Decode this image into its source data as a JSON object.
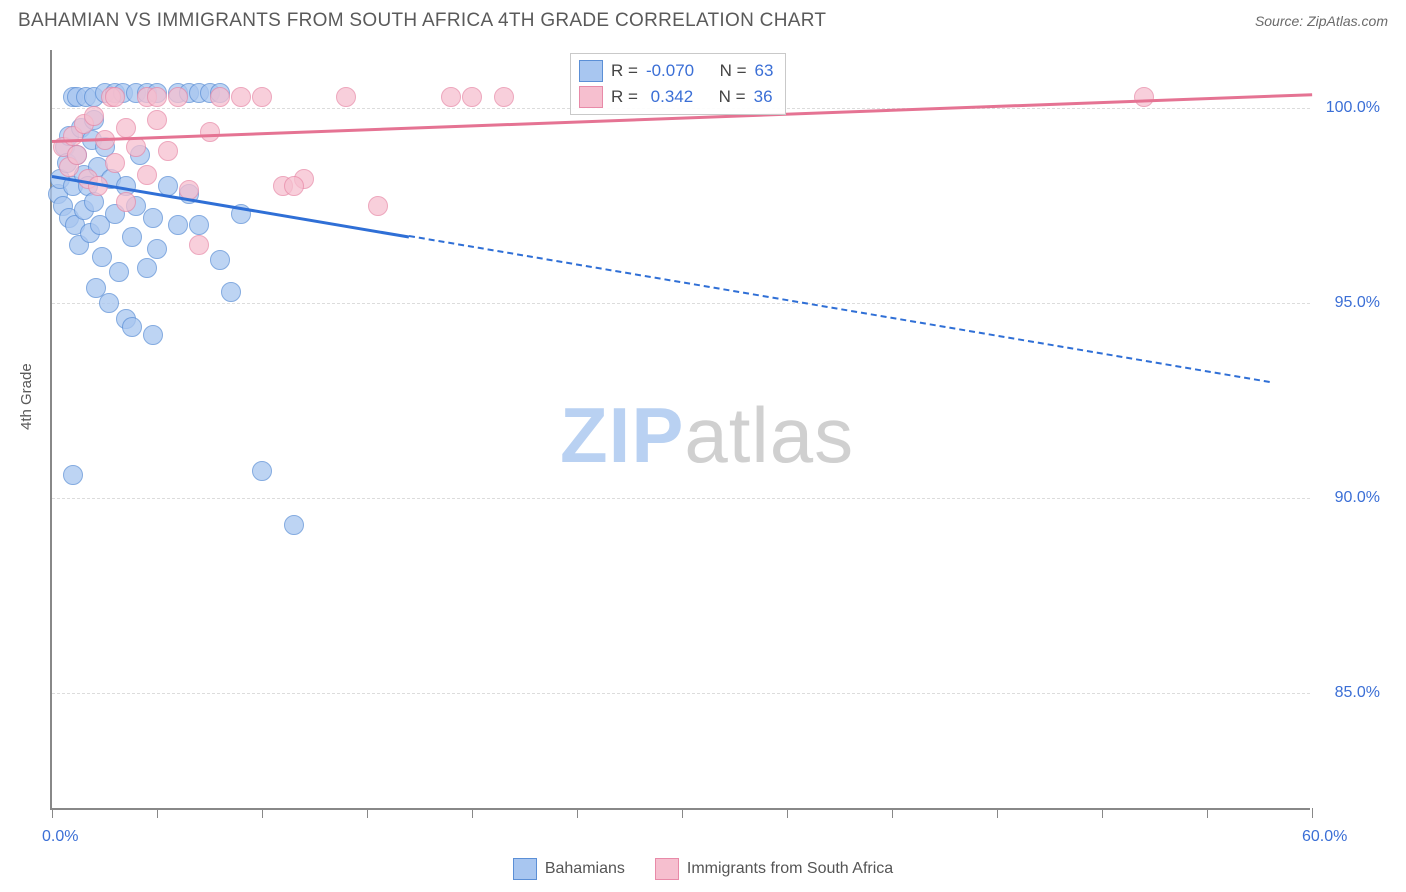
{
  "header": {
    "title": "BAHAMIAN VS IMMIGRANTS FROM SOUTH AFRICA 4TH GRADE CORRELATION CHART",
    "source": "Source: ZipAtlas.com"
  },
  "watermark": {
    "part1": "ZIP",
    "part2": "atlas",
    "color1": "#b9d1f2",
    "color2": "#d0d0d0"
  },
  "axes": {
    "y_title": "4th Grade",
    "xlim": [
      0,
      60
    ],
    "ylim": [
      82,
      101.5
    ],
    "x_ticks": [
      0,
      5,
      10,
      15,
      20,
      25,
      30,
      35,
      40,
      45,
      50,
      55,
      60
    ],
    "x_labels": [
      {
        "v": 0,
        "t": "0.0%"
      },
      {
        "v": 60,
        "t": "60.0%"
      }
    ],
    "y_grid": [
      85,
      90,
      95,
      100
    ],
    "y_labels": [
      {
        "v": 85,
        "t": "85.0%"
      },
      {
        "v": 90,
        "t": "90.0%"
      },
      {
        "v": 95,
        "t": "95.0%"
      },
      {
        "v": 100,
        "t": "100.0%"
      }
    ],
    "grid_color": "#dcdcdc"
  },
  "series": [
    {
      "name": "Bahamians",
      "color_fill": "#a8c6f0",
      "color_stroke": "#5b8fd6",
      "r_label": "-0.070",
      "n_label": "63",
      "marker_radius": 9,
      "trend": {
        "x1": 0,
        "y1": 98.3,
        "x2_solid": 17,
        "x2": 58,
        "y2": 93.0,
        "color": "#2f6fd6",
        "width": 3
      },
      "points": [
        [
          0.3,
          97.8
        ],
        [
          0.4,
          98.2
        ],
        [
          0.5,
          97.5
        ],
        [
          0.6,
          99.0
        ],
        [
          0.7,
          98.6
        ],
        [
          0.8,
          97.2
        ],
        [
          0.8,
          99.3
        ],
        [
          1.0,
          98.0
        ],
        [
          1.0,
          100.3
        ],
        [
          1.1,
          97.0
        ],
        [
          1.2,
          98.8
        ],
        [
          1.2,
          100.3
        ],
        [
          1.3,
          96.5
        ],
        [
          1.4,
          99.5
        ],
        [
          1.5,
          98.3
        ],
        [
          1.5,
          97.4
        ],
        [
          1.6,
          100.3
        ],
        [
          1.7,
          98.0
        ],
        [
          1.8,
          96.8
        ],
        [
          1.9,
          99.2
        ],
        [
          2.0,
          97.6
        ],
        [
          2.0,
          100.3
        ],
        [
          2.1,
          95.4
        ],
        [
          2.2,
          98.5
        ],
        [
          2.3,
          97.0
        ],
        [
          2.4,
          96.2
        ],
        [
          2.5,
          99.0
        ],
        [
          2.5,
          100.4
        ],
        [
          2.7,
          95.0
        ],
        [
          2.8,
          98.2
        ],
        [
          3.0,
          97.3
        ],
        [
          3.0,
          100.4
        ],
        [
          3.2,
          95.8
        ],
        [
          3.4,
          100.4
        ],
        [
          3.5,
          98.0
        ],
        [
          3.5,
          94.6
        ],
        [
          3.8,
          96.7
        ],
        [
          4.0,
          97.5
        ],
        [
          4.0,
          100.4
        ],
        [
          4.2,
          98.8
        ],
        [
          4.5,
          95.9
        ],
        [
          4.5,
          100.4
        ],
        [
          4.8,
          97.2
        ],
        [
          5.0,
          96.4
        ],
        [
          5.0,
          100.4
        ],
        [
          5.5,
          98.0
        ],
        [
          6.0,
          97.0
        ],
        [
          6.0,
          100.4
        ],
        [
          6.5,
          100.4
        ],
        [
          7.0,
          100.4
        ],
        [
          7.0,
          97.0
        ],
        [
          7.5,
          100.4
        ],
        [
          8.0,
          96.1
        ],
        [
          8.0,
          100.4
        ],
        [
          8.5,
          95.3
        ],
        [
          1.0,
          90.6
        ],
        [
          3.8,
          94.4
        ],
        [
          4.8,
          94.2
        ],
        [
          10.0,
          90.7
        ],
        [
          11.5,
          89.3
        ],
        [
          6.5,
          97.8
        ],
        [
          9.0,
          97.3
        ],
        [
          2.0,
          99.7
        ]
      ]
    },
    {
      "name": "Immigrants from South Africa",
      "color_fill": "#f6bfcf",
      "color_stroke": "#e88aa8",
      "r_label": "0.342",
      "n_label": "36",
      "marker_radius": 9,
      "trend": {
        "x1": 0,
        "y1": 99.2,
        "x2_solid": 60,
        "x2": 60,
        "y2": 100.4,
        "color": "#e57393",
        "width": 3
      },
      "points": [
        [
          0.5,
          99.0
        ],
        [
          0.8,
          98.5
        ],
        [
          1.0,
          99.3
        ],
        [
          1.2,
          98.8
        ],
        [
          1.5,
          99.6
        ],
        [
          1.7,
          98.2
        ],
        [
          2.0,
          99.8
        ],
        [
          2.2,
          98.0
        ],
        [
          2.5,
          99.2
        ],
        [
          2.8,
          100.3
        ],
        [
          3.0,
          98.6
        ],
        [
          3.0,
          100.3
        ],
        [
          3.5,
          99.5
        ],
        [
          3.5,
          97.6
        ],
        [
          4.0,
          99.0
        ],
        [
          4.5,
          100.3
        ],
        [
          4.5,
          98.3
        ],
        [
          5.0,
          99.7
        ],
        [
          5.0,
          100.3
        ],
        [
          5.5,
          98.9
        ],
        [
          6.0,
          100.3
        ],
        [
          6.5,
          97.9
        ],
        [
          7.0,
          96.5
        ],
        [
          7.5,
          99.4
        ],
        [
          8.0,
          100.3
        ],
        [
          9.0,
          100.3
        ],
        [
          10.0,
          100.3
        ],
        [
          11.0,
          98.0
        ],
        [
          12.0,
          98.2
        ],
        [
          14.0,
          100.3
        ],
        [
          15.5,
          97.5
        ],
        [
          19.0,
          100.3
        ],
        [
          20.0,
          100.3
        ],
        [
          21.5,
          100.3
        ],
        [
          11.5,
          98.0
        ],
        [
          52.0,
          100.3
        ]
      ]
    }
  ],
  "legend_box": {
    "r_prefix": "R = ",
    "n_prefix": "N = "
  },
  "bottom_legend": {
    "items": [
      "Bahamians",
      "Immigrants from South Africa"
    ]
  }
}
